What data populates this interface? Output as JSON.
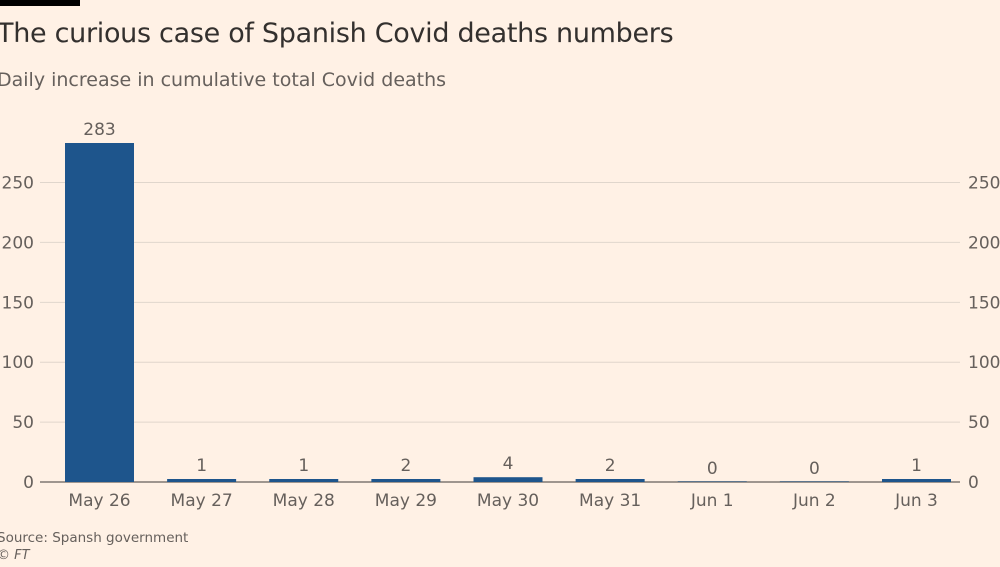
{
  "header": {
    "title": "The curious case of Spanish Covid deaths numbers",
    "subtitle": "Daily increase in cumulative total Covid deaths"
  },
  "footer": {
    "source": "Source: Spansh government",
    "copyright": "© FT"
  },
  "colors": {
    "background": "#fff1e5",
    "bar": "#1e558c",
    "grid": "#e0d6cc",
    "axis": "#66605c",
    "text": "#33302e"
  },
  "chart_data": {
    "type": "bar",
    "title": "The curious case of Spanish Covid deaths numbers",
    "subtitle": "Daily increase in cumulative total Covid deaths",
    "xlabel": "",
    "ylabel": "",
    "categories": [
      "May 26",
      "May 27",
      "May 28",
      "May 29",
      "May 30",
      "May 31",
      "Jun 1",
      "Jun 2",
      "Jun 3"
    ],
    "values": [
      283,
      1,
      1,
      2,
      4,
      2,
      0,
      0,
      1
    ],
    "value_labels": [
      "283",
      "1",
      "1",
      "2",
      "4",
      "2",
      "0",
      "0",
      "1"
    ],
    "ylim": [
      0,
      283
    ],
    "yticks": [
      0,
      50,
      100,
      150,
      200,
      250
    ],
    "ytick_labels": [
      "0",
      "50",
      "100",
      "150",
      "200",
      "250"
    ],
    "grid": true,
    "axis_labels_both_sides": true
  }
}
